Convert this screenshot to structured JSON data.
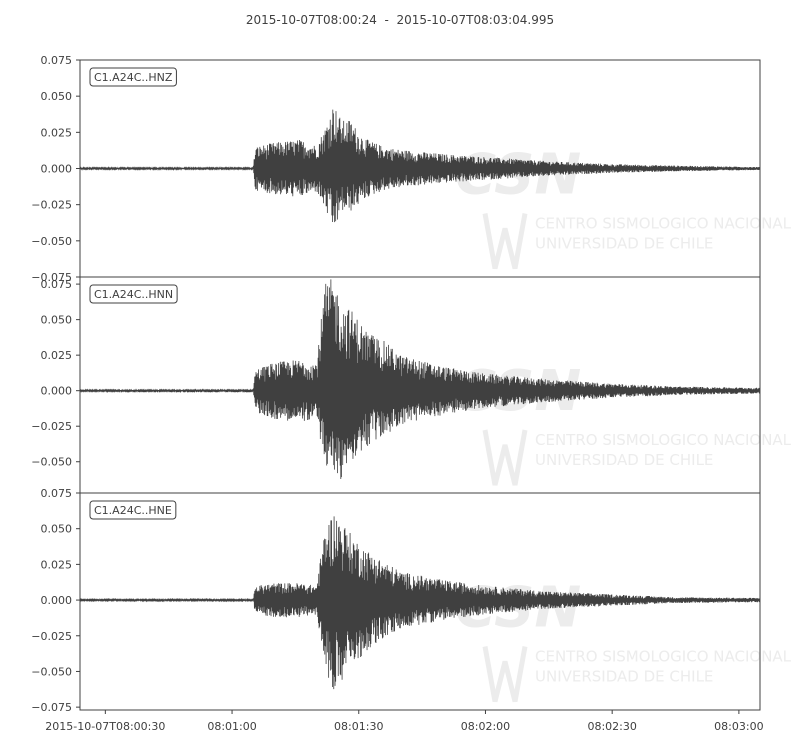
{
  "title": {
    "start": "2015-10-07T08:00:24",
    "separator": "  -  ",
    "end": "2015-10-07T08:03:04.995"
  },
  "colors": {
    "trace": "#404040",
    "axis": "#404040",
    "background": "#ffffff",
    "watermark": "#ececec"
  },
  "watermark": {
    "logo": "CSN",
    "line1": "CENTRO SISMOLOGICO NACIONAL",
    "line2": "UNIVERSIDAD DE CHILE"
  },
  "chart_data": {
    "type": "line",
    "x_ticks": [
      "2015-10-07T08:00:30",
      "08:01:00",
      "08:01:30",
      "08:02:00",
      "08:02:30",
      "08:03:00"
    ],
    "x_tick_seconds": [
      30,
      60,
      90,
      120,
      150,
      180
    ],
    "x_range_seconds": [
      24,
      185
    ],
    "panels": [
      {
        "label": "C1.A24C..HNZ",
        "ylim": [
          -0.075,
          0.075
        ],
        "yticks": [
          "0.075",
          "0.050",
          "0.025",
          "0.000",
          "−0.025",
          "−0.050",
          "−0.075"
        ],
        "ytick_values": [
          0.075,
          0.05,
          0.025,
          0,
          -0.025,
          -0.05,
          -0.075
        ],
        "envelope": {
          "t_seconds": [
            24,
            65,
            65.5,
            70,
            76,
            80,
            82,
            84,
            86,
            88,
            90,
            92,
            96,
            100,
            110,
            120,
            135,
            150,
            165,
            185
          ],
          "max": [
            0.0005,
            0.0005,
            0.015,
            0.018,
            0.02,
            0.016,
            0.028,
            0.045,
            0.033,
            0.034,
            0.025,
            0.02,
            0.015,
            0.013,
            0.01,
            0.008,
            0.005,
            0.003,
            0.002,
            0.001
          ],
          "min": [
            -0.0005,
            -0.0005,
            -0.015,
            -0.018,
            -0.02,
            -0.016,
            -0.028,
            -0.044,
            -0.03,
            -0.03,
            -0.025,
            -0.02,
            -0.015,
            -0.013,
            -0.01,
            -0.008,
            -0.005,
            -0.003,
            -0.002,
            -0.001
          ]
        }
      },
      {
        "label": "C1.A24C..HNN",
        "ylim": [
          -0.072,
          0.08
        ],
        "yticks": [
          "0.075",
          "0.050",
          "0.025",
          "0.000",
          "−0.025",
          "−0.050"
        ],
        "ytick_values": [
          0.075,
          0.05,
          0.025,
          0,
          -0.025,
          -0.05
        ],
        "envelope": {
          "t_seconds": [
            24,
            65,
            65.5,
            70,
            76,
            80,
            82,
            84,
            86,
            88,
            90,
            92,
            96,
            100,
            110,
            120,
            135,
            150,
            165,
            185
          ],
          "max": [
            0.0005,
            0.0005,
            0.015,
            0.02,
            0.022,
            0.02,
            0.075,
            0.08,
            0.06,
            0.058,
            0.05,
            0.042,
            0.035,
            0.025,
            0.017,
            0.012,
            0.008,
            0.005,
            0.003,
            0.002
          ],
          "min": [
            -0.0005,
            -0.0005,
            -0.015,
            -0.02,
            -0.022,
            -0.02,
            -0.052,
            -0.062,
            -0.063,
            -0.05,
            -0.045,
            -0.04,
            -0.032,
            -0.024,
            -0.017,
            -0.012,
            -0.008,
            -0.005,
            -0.003,
            -0.002
          ]
        }
      },
      {
        "label": "C1.A24C..HNE",
        "ylim": [
          -0.077,
          0.075
        ],
        "yticks": [
          "0.075",
          "0.050",
          "0.025",
          "0.000",
          "−0.025",
          "−0.050",
          "−0.075"
        ],
        "ytick_values": [
          0.075,
          0.05,
          0.025,
          0,
          -0.025,
          -0.05,
          -0.075
        ],
        "envelope": {
          "t_seconds": [
            24,
            65,
            65.5,
            70,
            76,
            80,
            82,
            84,
            86,
            88,
            90,
            92,
            96,
            100,
            110,
            120,
            135,
            150,
            165,
            185
          ],
          "max": [
            0.0005,
            0.0005,
            0.01,
            0.012,
            0.012,
            0.01,
            0.05,
            0.062,
            0.055,
            0.047,
            0.04,
            0.035,
            0.027,
            0.02,
            0.014,
            0.01,
            0.006,
            0.004,
            0.002,
            0.0015
          ],
          "min": [
            -0.0005,
            -0.0005,
            -0.01,
            -0.012,
            -0.012,
            -0.01,
            -0.048,
            -0.063,
            -0.058,
            -0.047,
            -0.042,
            -0.035,
            -0.027,
            -0.02,
            -0.014,
            -0.01,
            -0.006,
            -0.004,
            -0.002,
            -0.0015
          ]
        }
      }
    ]
  }
}
